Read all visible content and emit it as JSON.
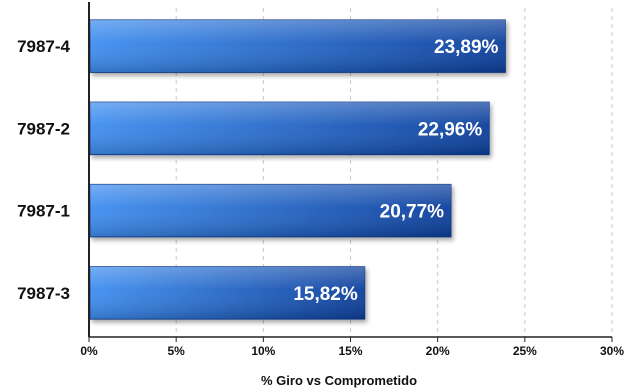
{
  "chart_data": {
    "type": "bar",
    "orientation": "horizontal",
    "categories": [
      "7987-4",
      "7987-2",
      "7987-1",
      "7987-3"
    ],
    "values": [
      23.89,
      22.96,
      20.77,
      15.82
    ],
    "value_labels": [
      "23,89%",
      "22,96%",
      "20,77%",
      "15,82%"
    ],
    "xlabel": "% Giro vs Comprometido",
    "xlim": [
      0,
      30
    ],
    "xticks": [
      0,
      5,
      10,
      15,
      20,
      25,
      30
    ],
    "xtick_labels": [
      "0%",
      "5%",
      "10%",
      "15%",
      "20%",
      "25%",
      "30%"
    ],
    "grid": "vertical-dashed",
    "legend": "none",
    "colors": {
      "bar_light": "#3f8ef0",
      "bar_dark": "#0c3f9c",
      "bar_edge": "#0a3585",
      "grid": "#c9c9c9",
      "axis": "#222222"
    }
  }
}
